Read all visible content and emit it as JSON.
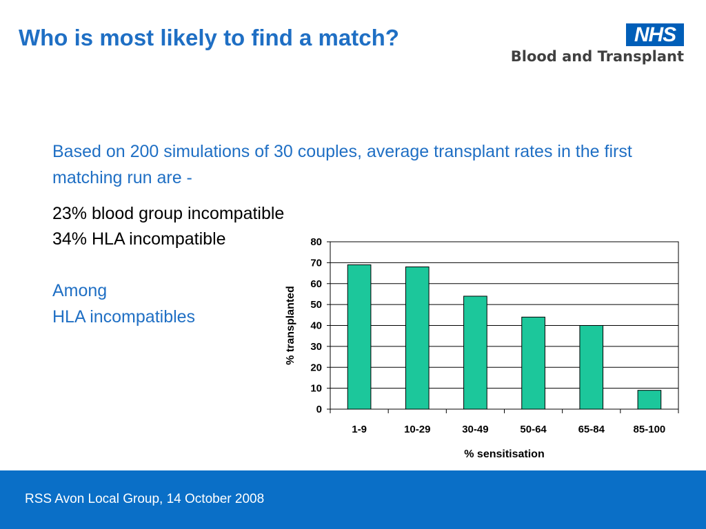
{
  "slide": {
    "title": "Who is most likely to find a match?",
    "intro": "Based on 200 simulations of 30 couples, average transplant rates in the first matching run are -",
    "stats": [
      "23% blood group incompatible",
      "34% HLA incompatible"
    ],
    "subheading": [
      "Among",
      "HLA incompatibles"
    ]
  },
  "logo": {
    "badge": "NHS",
    "org": "Blood and Transplant"
  },
  "footer": {
    "text": "RSS Avon Local Group, 14 October 2008"
  },
  "colors": {
    "title_blue": "#1f6fc4",
    "bar_fill": "#1cc79b",
    "footer_blue": "#0a6fc7",
    "nhs_blue": "#005eb8"
  },
  "chart_data": {
    "type": "bar",
    "categories": [
      "1-9",
      "10-29",
      "30-49",
      "50-64",
      "65-84",
      "85-100"
    ],
    "values": [
      69,
      68,
      54,
      44,
      40,
      9
    ],
    "title": "",
    "xlabel": "% sensitisation",
    "ylabel": "% transplanted",
    "ylim": [
      0,
      80
    ],
    "yticks": [
      0,
      10,
      20,
      30,
      40,
      50,
      60,
      70,
      80
    ],
    "grid": true,
    "legend": "none"
  }
}
